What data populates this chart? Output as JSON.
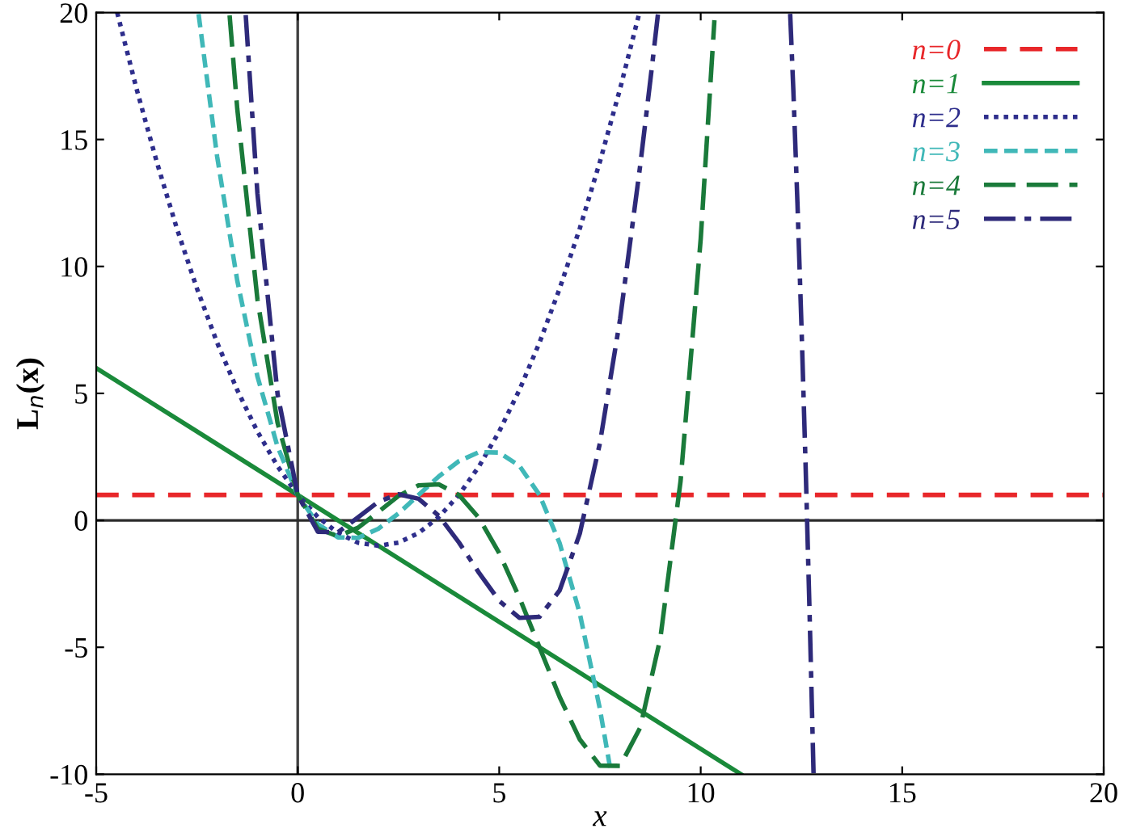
{
  "chart_data": {
    "type": "line",
    "xlabel": "x",
    "ylabel": "L$_{n}$(x)",
    "xlim": [
      -5,
      20
    ],
    "ylim": [
      -10,
      20
    ],
    "xticks": [
      -5,
      0,
      5,
      10,
      15,
      20
    ],
    "yticks": [
      -10,
      -5,
      0,
      5,
      10,
      15,
      20
    ],
    "grid": false,
    "legend": "top right",
    "marker": "none",
    "ref_lines": [
      {
        "axis": "x",
        "value": 0,
        "color": "#404040"
      },
      {
        "axis": "y",
        "value": 0,
        "color": "#2a2a2a"
      }
    ],
    "series": [
      {
        "name": "n=0",
        "color": "#e8272a",
        "line_style": "dashed",
        "x": [
          -5,
          20
        ],
        "values": [
          1,
          1
        ]
      },
      {
        "name": "n=1",
        "color": "#1a8a3a",
        "line_style": "solid",
        "x": [
          -5,
          11
        ],
        "values": [
          6,
          -10
        ]
      },
      {
        "name": "n=2",
        "color": "#2e2e8c",
        "line_style": "dotted",
        "x": [
          -4.48,
          -4,
          -3.5,
          -3,
          -2.5,
          -2,
          -1.5,
          -1,
          -0.5,
          0,
          0.5,
          1,
          1.5,
          2,
          2.5,
          3,
          3.5,
          4,
          4.5,
          5,
          5.5,
          6,
          6.5,
          7,
          7.5,
          8,
          8.48
        ],
        "values": [
          20,
          17,
          14.13,
          11.5,
          9.13,
          7,
          5.13,
          3.5,
          2.13,
          1,
          0.13,
          -0.5,
          -0.88,
          -1,
          -0.88,
          -0.5,
          0.13,
          1,
          2.13,
          3.5,
          5.13,
          7,
          9.13,
          11.5,
          14.13,
          17,
          20
        ]
      },
      {
        "name": "n=3",
        "color": "#40b8b8",
        "line_style": "densely dashed",
        "x": [
          -2.46,
          -2,
          -1.5,
          -1,
          -0.5,
          0,
          0.5,
          1,
          1.5,
          2,
          2.5,
          3,
          3.5,
          4,
          4.5,
          5,
          5.5,
          6,
          6.5,
          7,
          7.5,
          7.78
        ],
        "values": [
          19.94,
          14.33,
          9.44,
          5.67,
          2.9,
          1,
          -0.15,
          -0.67,
          -0.69,
          -0.33,
          0.27,
          1,
          1.73,
          2.33,
          2.69,
          2.67,
          2.15,
          1,
          -0.9,
          -3.67,
          -7.44,
          -10
        ]
      },
      {
        "name": "n=4",
        "color": "#1a7a3a",
        "line_style": "long dashed",
        "x": [
          -1.69,
          -1.5,
          -1,
          -0.5,
          0,
          0.5,
          1,
          1.5,
          2,
          2.5,
          3,
          3.5,
          4,
          4.5,
          5,
          5.5,
          6,
          6.5,
          7,
          7.5,
          8,
          8.5,
          9,
          9.5,
          10,
          10.34
        ],
        "values": [
          19.89,
          16.21,
          8.71,
          3.84,
          1,
          -0.33,
          -0.63,
          -0.29,
          0.33,
          0.96,
          1.38,
          1.42,
          1,
          0.09,
          -1.29,
          -3.04,
          -5,
          -6.96,
          -8.63,
          -9.66,
          -9.67,
          -8.16,
          -4.63,
          1.54,
          11.08,
          19.7
        ]
      },
      {
        "name": "n=5",
        "color": "#2e2a7a",
        "line_style": "dashdot",
        "x": [
          -1.29,
          -1,
          -0.5,
          0,
          0.5,
          1,
          1.5,
          2,
          2.5,
          3,
          3.5,
          4,
          4.5,
          5,
          5.5,
          6,
          6.5,
          7,
          7.5,
          8,
          8.5,
          8.8,
          8.94,
          10.5,
          12.22,
          12.3,
          12.4,
          12.5,
          12.6,
          12.7,
          12.8
        ],
        "values": [
          19.9,
          12.88,
          4.97,
          1,
          -0.45,
          -0.47,
          0.12,
          0.73,
          1.03,
          0.85,
          0.18,
          -0.87,
          -2.07,
          -3.17,
          -3.84,
          -3.8,
          -2.76,
          -0.52,
          3.05,
          7.93,
          13.99,
          18,
          19.95,
          null,
          19.95,
          16.89,
          12.52,
          7.67,
          2.33,
          -3.54,
          -9.96
        ]
      }
    ]
  }
}
